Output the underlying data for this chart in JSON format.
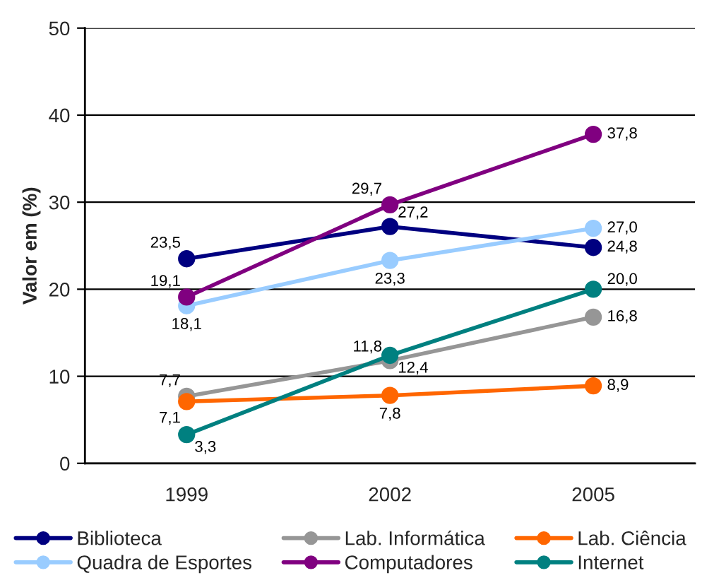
{
  "chart_data": {
    "type": "line",
    "ylabel": "Valor em (%)",
    "categories": [
      "1999",
      "2002",
      "2005"
    ],
    "series": [
      {
        "name": "Biblioteca",
        "color": "#000080",
        "values": [
          23.5,
          27.2,
          24.8
        ],
        "value_labels": [
          "23,5",
          "27,2",
          "24,8"
        ]
      },
      {
        "name": "Lab. Informática",
        "color": "#969696",
        "values": [
          7.7,
          11.8,
          16.8
        ],
        "value_labels": [
          "7,7",
          "11,8",
          "16,8"
        ]
      },
      {
        "name": "Lab. Ciência",
        "color": "#ff6600",
        "values": [
          7.1,
          7.8,
          8.9
        ],
        "value_labels": [
          "7,1",
          "7,8",
          "8,9"
        ]
      },
      {
        "name": "Quadra de Esportes",
        "color": "#99ccff",
        "values": [
          18.1,
          23.3,
          27.0
        ],
        "value_labels": [
          "18,1",
          "23,3",
          "27,0"
        ]
      },
      {
        "name": "Computadores",
        "color": "#800080",
        "values": [
          19.1,
          29.7,
          37.8
        ],
        "value_labels": [
          "19,1",
          "29,7",
          "37,8"
        ]
      },
      {
        "name": "Internet",
        "color": "#008080",
        "values": [
          3.3,
          12.4,
          20.0
        ],
        "value_labels": [
          "3,3",
          "12,4",
          "20,0"
        ]
      }
    ],
    "ylim": [
      0,
      50
    ],
    "yticks": [
      0,
      10,
      20,
      30,
      40,
      50
    ],
    "grid": "y",
    "legend": "bottom",
    "marker": "circle",
    "line_style": "solid"
  }
}
